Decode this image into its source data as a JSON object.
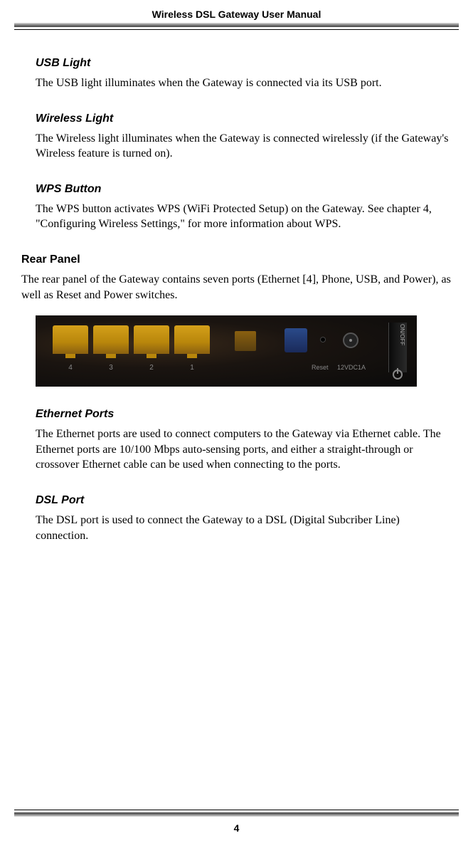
{
  "header": {
    "title": "Wireless DSL Gateway User Manual"
  },
  "sections": {
    "usb_light": {
      "title": "USB Light",
      "text_before": "The ",
      "text_sc1": "USB",
      "text_mid": " light illuminates when the Gateway is connected via its ",
      "text_sc2": "USB",
      "text_after": " port."
    },
    "wireless_light": {
      "title": "Wireless Light",
      "text": "The Wireless light illuminates when the Gateway is connected wirelessly (if the Gateway's Wireless feature is turned on)."
    },
    "wps_button": {
      "title": "WPS Button",
      "text_before": "The ",
      "text_sc1": "WPS",
      "text_mid1": " button activates ",
      "text_sc2": "WPS",
      "text_mid2": " (WiFi Protected Setup) on the Gateway. See chapter 4, \"Configuring Wireless Settings,\" for more information about ",
      "text_sc3": "WPS",
      "text_after": "."
    },
    "rear_panel": {
      "title": "Rear Panel",
      "intro_before": "The rear panel of the Gateway contains seven ports (Ethernet [4], Phone, ",
      "intro_sc": "USB",
      "intro_after": ", and Power), as well as Reset and Power switches."
    },
    "ethernet_ports": {
      "title": "Ethernet Ports",
      "text_before": "The Ethernet ports are used to connect computers to the Gateway via Ethernet cable. The Ethernet ports are ",
      "text_sc": "10/100",
      "text_after": " Mbps auto-sensing ports, and either a straight-through or crossover Ethernet cable can be used when connecting to the ports."
    },
    "dsl_port": {
      "title": "DSL Port",
      "text_before": "The ",
      "text_sc1": "DSL",
      "text_mid": " port is used to connect the Gateway to a ",
      "text_sc2": "DSL",
      "text_after": " (Digital Subcriber Line) connection."
    }
  },
  "figure": {
    "eth_labels": [
      "4",
      "3",
      "2",
      "1"
    ],
    "reset_label": "Reset",
    "power_label": "12VDC1A",
    "onoff_label": "ON/OFF",
    "colors": {
      "port_yellow": "#b8860b",
      "usb_blue": "#1a2a5a",
      "background": "#1a1410"
    }
  },
  "footer": {
    "page_number": "4"
  }
}
